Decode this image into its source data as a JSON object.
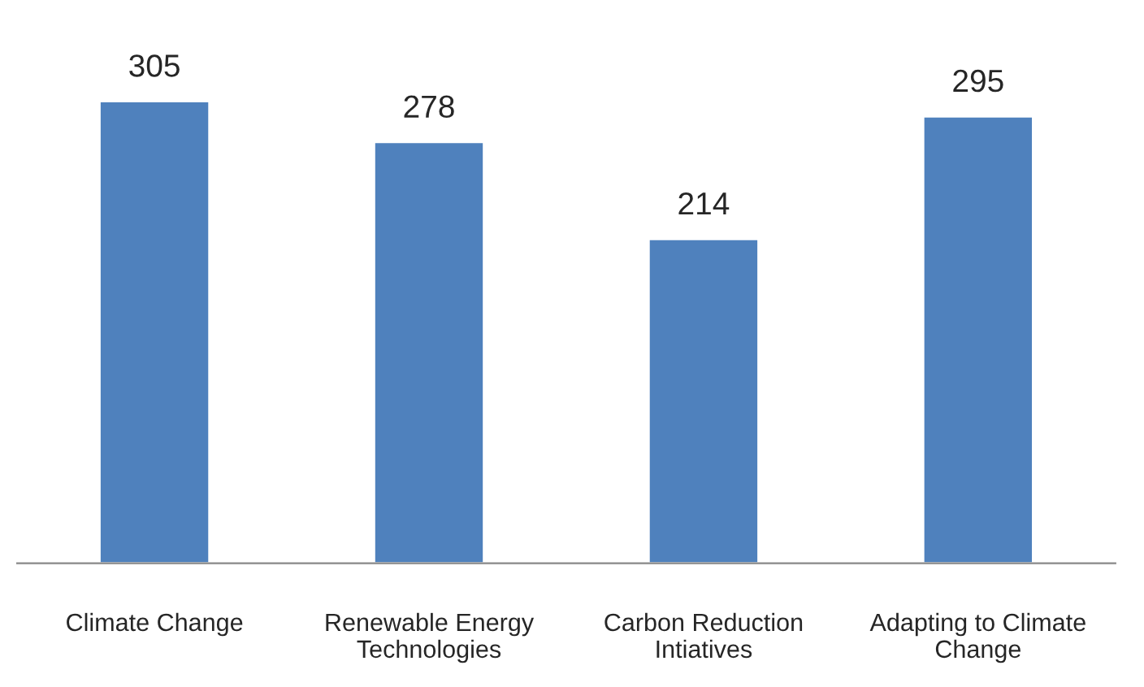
{
  "chart_data": {
    "type": "bar",
    "categories": [
      "Climate Change",
      "Renewable Energy\nTechnologies",
      "Carbon Reduction\nIntiatives",
      "Adapting to Climate\nChange"
    ],
    "values": [
      305,
      278,
      214,
      295
    ],
    "color": "#4f81bd",
    "data_labels": true
  }
}
